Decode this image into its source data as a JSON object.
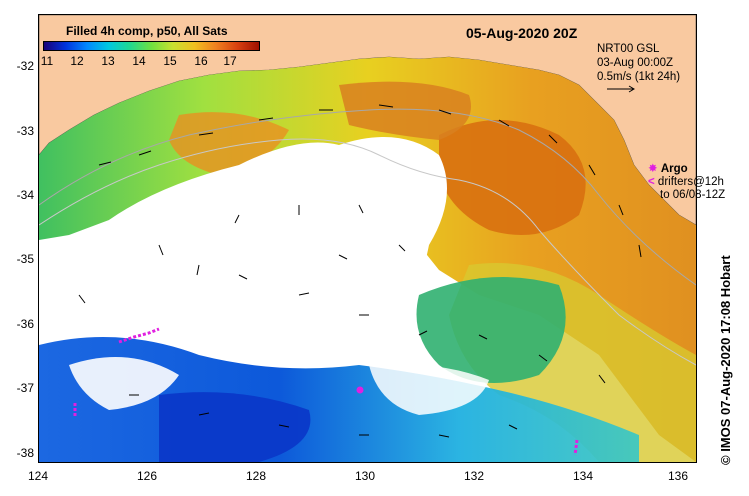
{
  "map": {
    "colorbar_title": "Filled 4h comp, p50, All Sats",
    "colorbar_ticks": [
      "11",
      "12",
      "13",
      "14",
      "15",
      "16",
      "17"
    ],
    "date_title": "05-Aug-2020 20Z",
    "legend": {
      "line1": "NRT00 GSL",
      "line2": "03-Aug 00:00Z",
      "line3": "0.5m/s (1kt 24h)"
    },
    "argo": {
      "label": "Argo",
      "drifters_line1": "drifters@12h",
      "drifters_line2": "to 06/08-12Z",
      "symbol_color": "#e020e0"
    },
    "credit": "© IMOS 07-Aug-2020 17:08 Hobart",
    "lat_labels": [
      "-32",
      "-33",
      "-34",
      "-35",
      "-36",
      "-37",
      "-38"
    ],
    "lon_labels": [
      "124",
      "126",
      "128",
      "130",
      "132",
      "134",
      "136"
    ],
    "colors": {
      "land": "#f9c9a0",
      "sst_cold": "#0033dd",
      "sst_warm": "#d87010",
      "contour": "#c8c8c8"
    }
  }
}
